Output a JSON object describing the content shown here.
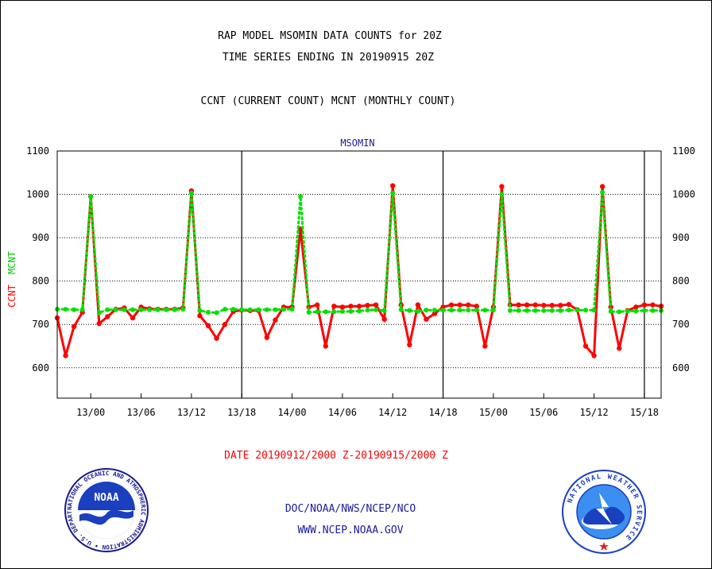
{
  "header": {
    "title1": "RAP MODEL MSOMIN DATA COUNTS for 20Z",
    "title2": "TIME SERIES ENDING IN 20190915 20Z",
    "subtitle": "CCNT (CURRENT COUNT) MCNT (MONTHLY COUNT)"
  },
  "footer": {
    "date_range": "DATE 20190912/2000 Z-20190915/2000 Z",
    "org": "DOC/NOAA/NWS/NCEP/NCO",
    "url": "WWW.NCEP.NOAA.GOV"
  },
  "logos": {
    "noaa_text": "NOAA",
    "noaa_ring": "NATIONAL OCEANIC AND ATMOSPHERIC ADMINISTRATION • U.S. DEPARTMENT OF COMMERCE •",
    "nws_ring": "NATIONAL WEATHER SERVICE"
  },
  "colors": {
    "ccnt": "#ff0000",
    "mcnt": "#00e000",
    "text_blue": "#1a1aa0"
  },
  "chart_data": {
    "type": "line",
    "title": "MSOMIN",
    "ylabel_ccnt": "CCNT",
    "ylabel_mcnt": "MCNT",
    "ylim": [
      530,
      1100
    ],
    "yticks": [
      600,
      700,
      800,
      900,
      1000,
      1100
    ],
    "xlim": [
      0,
      72
    ],
    "xticks": [
      {
        "h": 4,
        "label": "13/00"
      },
      {
        "h": 10,
        "label": "13/06"
      },
      {
        "h": 16,
        "label": "13/12"
      },
      {
        "h": 22,
        "label": "13/18"
      },
      {
        "h": 28,
        "label": "14/00"
      },
      {
        "h": 34,
        "label": "14/06"
      },
      {
        "h": 40,
        "label": "14/12"
      },
      {
        "h": 46,
        "label": "14/18"
      },
      {
        "h": 52,
        "label": "15/00"
      },
      {
        "h": 58,
        "label": "15/06"
      },
      {
        "h": 64,
        "label": "15/12"
      },
      {
        "h": 70,
        "label": "15/18"
      }
    ],
    "day_boundaries_h": [
      22,
      46,
      70
    ],
    "grid": true,
    "series": [
      {
        "name": "CCNT",
        "color": "#ff0000",
        "values": [
          715,
          628,
          695,
          728,
          995,
          702,
          718,
          735,
          738,
          715,
          740,
          736,
          735,
          735,
          735,
          738,
          1008,
          720,
          697,
          668,
          700,
          730,
          733,
          732,
          732,
          670,
          710,
          740,
          740,
          920,
          740,
          745,
          650,
          742,
          740,
          742,
          742,
          744,
          745,
          712,
          1020,
          745,
          653,
          745,
          712,
          725,
          740,
          745,
          745,
          745,
          742,
          650,
          740,
          1018,
          745,
          745,
          745,
          745,
          744,
          744,
          744,
          746,
          734,
          650,
          628,
          1018,
          740,
          645,
          732,
          740,
          745,
          745,
          742
        ]
      },
      {
        "name": "MCNT",
        "color": "#00e000",
        "values": [
          735,
          735,
          734,
          734,
          995,
          727,
          734,
          734,
          734,
          734,
          734,
          734,
          734,
          734,
          734,
          735,
          1003,
          732,
          728,
          727,
          735,
          735,
          734,
          734,
          734,
          734,
          734,
          735,
          735,
          995,
          728,
          729,
          729,
          729,
          730,
          730,
          731,
          733,
          734,
          732,
          1003,
          734,
          732,
          730,
          733,
          733,
          733,
          733,
          733,
          733,
          733,
          733,
          733,
          1000,
          732,
          732,
          732,
          732,
          732,
          732,
          732,
          733,
          733,
          733,
          733,
          1005,
          730,
          729,
          731,
          731,
          732,
          732,
          732
        ]
      }
    ]
  }
}
